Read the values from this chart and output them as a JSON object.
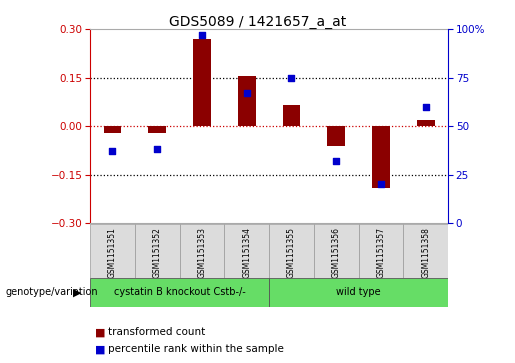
{
  "title": "GDS5089 / 1421657_a_at",
  "samples": [
    "GSM1151351",
    "GSM1151352",
    "GSM1151353",
    "GSM1151354",
    "GSM1151355",
    "GSM1151356",
    "GSM1151357",
    "GSM1151358"
  ],
  "transformed_count": [
    -0.02,
    -0.02,
    0.27,
    0.155,
    0.065,
    -0.06,
    -0.19,
    0.02
  ],
  "percentile_rank": [
    37,
    38,
    97,
    67,
    75,
    32,
    20,
    60
  ],
  "ylim_left": [
    -0.3,
    0.3
  ],
  "ylim_right": [
    0,
    100
  ],
  "yticks_left": [
    -0.3,
    -0.15,
    0,
    0.15,
    0.3
  ],
  "yticks_right": [
    0,
    25,
    50,
    75,
    100
  ],
  "hlines": [
    -0.15,
    0,
    0.15
  ],
  "bar_color": "#8B0000",
  "dot_color": "#0000CC",
  "background_color": "#ffffff",
  "plot_bg_color": "#ffffff",
  "group1_label": "cystatin B knockout Cstb-/-",
  "group2_label": "wild type",
  "group1_indices": [
    0,
    1,
    2,
    3
  ],
  "group2_indices": [
    4,
    5,
    6,
    7
  ],
  "group_color": "#66DD66",
  "sample_box_color": "#DCDCDC",
  "sample_box_edge": "#999999",
  "genotype_label": "genotype/variation",
  "legend_bar_label": "transformed count",
  "legend_dot_label": "percentile rank within the sample",
  "left_axis_color": "#CC0000",
  "right_axis_color": "#0000CC",
  "zero_line_color": "#CC0000",
  "hline_color": "#000000",
  "bar_width": 0.4
}
